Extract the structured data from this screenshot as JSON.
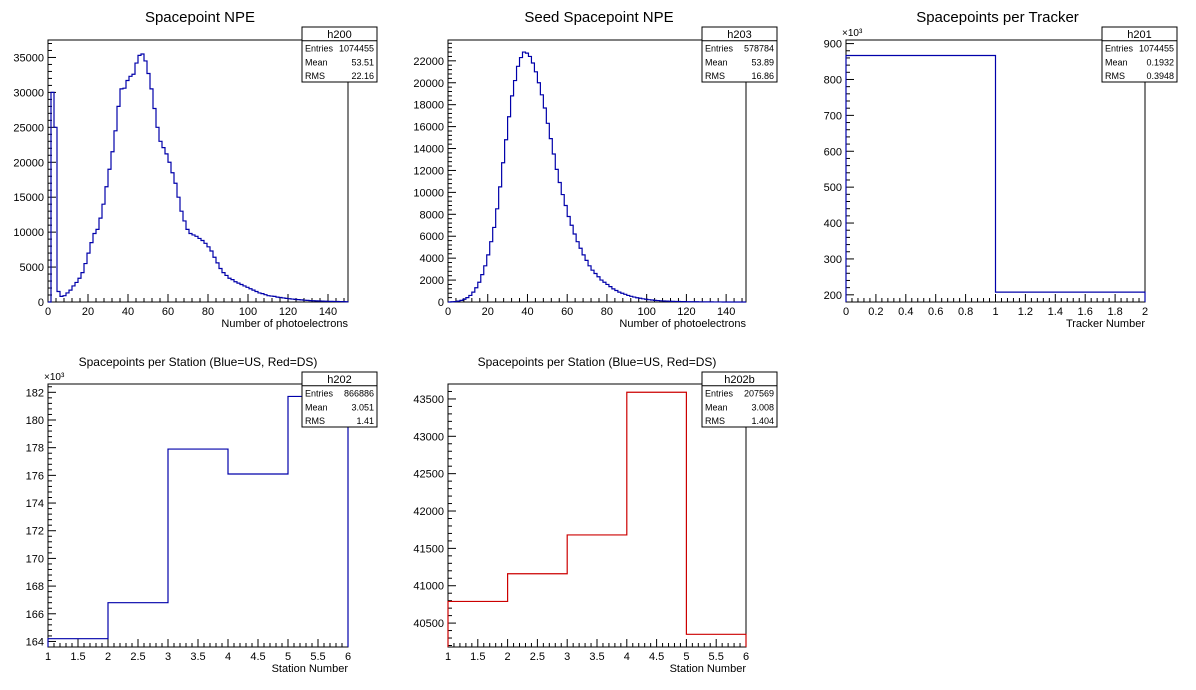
{
  "chart_data": [
    {
      "id": "h200",
      "type": "histogram",
      "title": "Spacepoint NPE",
      "xlabel": "Number of photoelectrons",
      "ylabel": "",
      "xlim": [
        0,
        150
      ],
      "ylim": [
        0,
        37500
      ],
      "xticks": [
        0,
        20,
        40,
        60,
        80,
        100,
        120,
        140
      ],
      "yticks": [
        0,
        5000,
        10000,
        15000,
        20000,
        25000,
        30000,
        35000
      ],
      "line_color": "#0000aa",
      "bin_width": 1.5,
      "values": [
        0,
        30000,
        25000,
        1500,
        800,
        900,
        1300,
        1700,
        2300,
        2800,
        3400,
        4200,
        5500,
        7000,
        8500,
        9800,
        10400,
        12000,
        14000,
        16500,
        19000,
        21500,
        24500,
        28000,
        30500,
        30600,
        31700,
        32300,
        32600,
        34200,
        35300,
        35500,
        34500,
        32700,
        30500,
        27700,
        25000,
        23000,
        22100,
        21200,
        20000,
        18500,
        17000,
        15000,
        13000,
        11600,
        10400,
        9800,
        9600,
        9400,
        9100,
        8800,
        8400,
        7900,
        7300,
        6400,
        5600,
        4800,
        4200,
        3800,
        3400,
        3200,
        2900,
        2700,
        2500,
        2300,
        2100,
        1900,
        1700,
        1500,
        1300,
        1200,
        1050,
        900,
        850,
        800,
        700,
        640,
        580,
        520,
        470,
        420,
        380,
        340,
        300,
        260,
        230,
        200,
        180,
        160,
        140,
        120,
        110,
        100,
        90,
        80,
        70,
        60,
        50,
        40
      ],
      "stats": {
        "name": "h200",
        "entries": "1074455",
        "mean": "53.51",
        "rms": "22.16"
      }
    },
    {
      "id": "h203",
      "type": "histogram",
      "title": "Seed Spacepoint NPE",
      "xlabel": "Number of photoelectrons",
      "ylabel": "",
      "xlim": [
        0,
        150
      ],
      "ylim": [
        0,
        23900
      ],
      "xticks": [
        0,
        20,
        40,
        60,
        80,
        100,
        120,
        140
      ],
      "yticks": [
        0,
        2000,
        4000,
        6000,
        8000,
        10000,
        12000,
        14000,
        16000,
        18000,
        20000,
        22000
      ],
      "line_color": "#0000aa",
      "bin_width": 1.5,
      "values": [
        0,
        20,
        40,
        80,
        150,
        250,
        400,
        600,
        900,
        1300,
        1800,
        2500,
        3300,
        4300,
        5500,
        6800,
        8500,
        10500,
        12700,
        14800,
        16900,
        18800,
        20200,
        21500,
        22300,
        22800,
        22700,
        22400,
        21800,
        21000,
        20000,
        18900,
        17700,
        16300,
        14900,
        13500,
        12100,
        10900,
        9800,
        8800,
        7800,
        7000,
        6200,
        5500,
        4900,
        4300,
        3800,
        3300,
        2900,
        2600,
        2300,
        2000,
        1800,
        1600,
        1400,
        1200,
        1050,
        900,
        800,
        700,
        600,
        520,
        450,
        390,
        340,
        290,
        250,
        210,
        180,
        150,
        130,
        110,
        90,
        80,
        70,
        60,
        50,
        45,
        40,
        35,
        30,
        25,
        22,
        20,
        18,
        15,
        12,
        10,
        8,
        6,
        5,
        4,
        3,
        2,
        2,
        1,
        1,
        1,
        0,
        0
      ],
      "stats": {
        "name": "h203",
        "entries": "578784",
        "mean": "53.89",
        "rms": "16.86"
      }
    },
    {
      "id": "h201",
      "type": "histogram",
      "title": "Spacepoints per Tracker",
      "xlabel": "Tracker Number",
      "ylabel": "",
      "exponent_label": "×10³",
      "xlim": [
        0,
        2
      ],
      "ylim": [
        180,
        910
      ],
      "xticks": [
        0,
        0.2,
        0.4,
        0.6,
        0.8,
        1,
        1.2,
        1.4,
        1.6,
        1.8,
        2
      ],
      "yticks": [
        200,
        300,
        400,
        500,
        600,
        700,
        800,
        900
      ],
      "line_color": "#0000aa",
      "bin_edges": [
        0,
        1,
        2
      ],
      "values": [
        866.886,
        207.569
      ],
      "stats": {
        "name": "h201",
        "entries": "1074455",
        "mean": "0.1932",
        "rms": "0.3948"
      }
    },
    {
      "id": "h202",
      "type": "histogram",
      "title": "Spacepoints per Station (Blue=US, Red=DS)",
      "xlabel": "Station Number",
      "ylabel": "",
      "exponent_label": "×10³",
      "xlim": [
        1,
        6
      ],
      "ylim": [
        163.6,
        182.6
      ],
      "xticks": [
        1,
        1.5,
        2,
        2.5,
        3,
        3.5,
        4,
        4.5,
        5,
        5.5,
        6
      ],
      "yticks": [
        164,
        166,
        168,
        170,
        172,
        174,
        176,
        178,
        180,
        182
      ],
      "line_color": "#0000aa",
      "bin_edges": [
        1,
        2,
        3,
        4,
        5,
        6
      ],
      "values": [
        164.2,
        166.8,
        177.9,
        176.1,
        181.7
      ],
      "stats": {
        "name": "h202",
        "entries": "866886",
        "mean": "3.051",
        "rms": "1.41"
      }
    },
    {
      "id": "h202b",
      "type": "histogram",
      "title": "Spacepoints per Station (Blue=US, Red=DS)",
      "xlabel": "Station Number",
      "ylabel": "",
      "xlim": [
        1,
        6
      ],
      "ylim": [
        40180,
        43700
      ],
      "xticks": [
        1,
        1.5,
        2,
        2.5,
        3,
        3.5,
        4,
        4.5,
        5,
        5.5,
        6
      ],
      "yticks": [
        40500,
        41000,
        41500,
        42000,
        42500,
        43000,
        43500
      ],
      "line_color": "#cc0000",
      "bin_edges": [
        1,
        2,
        3,
        4,
        5,
        6
      ],
      "values": [
        40790,
        41160,
        41680,
        43590,
        40350
      ],
      "stats": {
        "name": "h202b",
        "entries": "207569",
        "mean": "3.008",
        "rms": "1.404"
      }
    }
  ],
  "stats_labels": {
    "entries": "Entries",
    "mean": "Mean",
    "rms": "RMS"
  }
}
